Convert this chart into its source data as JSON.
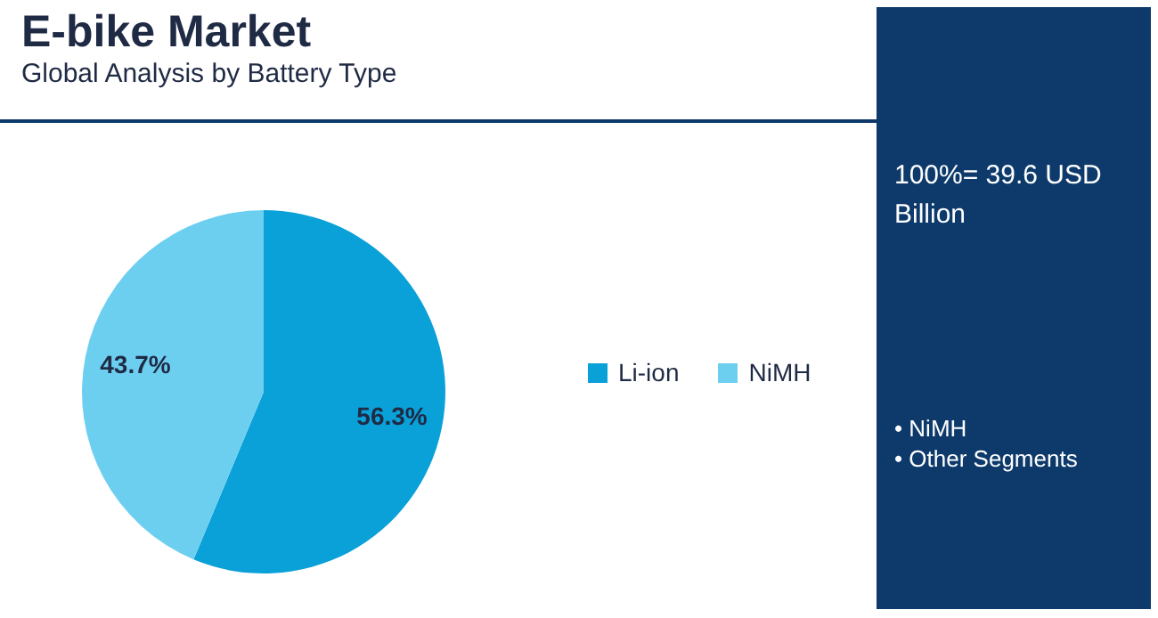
{
  "chart_data": {
    "type": "pie",
    "title": "E-bike Market",
    "subtitle": "Global Analysis by Battery Type",
    "categories": [
      "Li-ion",
      "NiMH"
    ],
    "values": [
      56.3,
      43.7
    ],
    "colors": [
      "#0aa0d8",
      "#6dcff0"
    ],
    "value_labels": [
      "56.3%",
      "43.7%"
    ],
    "legend": "right",
    "annotations": [
      "100%= 39.6 USD Billion",
      "• NiMH",
      "• Other Segments"
    ]
  }
}
